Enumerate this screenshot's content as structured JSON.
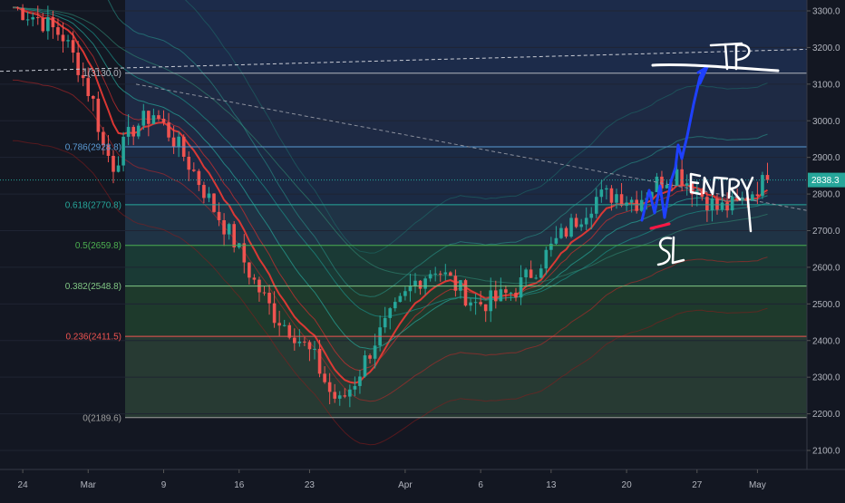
{
  "chart_data": {
    "type": "candlestick",
    "ylim": [
      2000,
      3330
    ],
    "x_ticks": [
      "24",
      "Mar",
      "9",
      "16",
      "23",
      "Apr",
      "6",
      "13",
      "20",
      "27",
      "May"
    ],
    "y_ticks": [
      "3300.0",
      "3200.0",
      "3100.0",
      "3000.0",
      "2900.0",
      "2800.0",
      "2700.0",
      "2600.0",
      "2500.0",
      "2400.0",
      "2300.0",
      "2200.0",
      "2100.0"
    ],
    "current_price": "2838.3",
    "fib_levels": [
      {
        "label": "1(3130.0)",
        "ratio": 1,
        "price": 3130.0,
        "color": "#b2b5be",
        "fill": "#1e2a44"
      },
      {
        "label": "0.786(2928.8)",
        "ratio": 0.786,
        "price": 2928.8,
        "color": "#5b9bd5",
        "fill": "#1b2a44"
      },
      {
        "label": "0.618(2770.8)",
        "ratio": 0.618,
        "price": 2770.8,
        "color": "#26a69a",
        "fill": "#1f3345"
      },
      {
        "label": "0.5(2659.8)",
        "ratio": 0.5,
        "price": 2659.8,
        "color": "#4caf50",
        "fill": "#1a3a35"
      },
      {
        "label": "0.382(2548.8)",
        "ratio": 0.382,
        "price": 2548.8,
        "color": "#81c784",
        "fill": "#1e3a2c"
      },
      {
        "label": "0.236(2411.5)",
        "ratio": 0.236,
        "price": 2411.5,
        "color": "#ef5350",
        "fill": "#273a33"
      },
      {
        "label": "0(2189.6)",
        "ratio": 0,
        "price": 2189.6,
        "color": "#9e9e9e",
        "fill": "#4a1e24"
      }
    ],
    "close_path": [
      [
        0,
        3310
      ],
      [
        5,
        3280
      ],
      [
        10,
        3230
      ],
      [
        13,
        3150
      ],
      [
        16,
        3050
      ],
      [
        18,
        2930
      ],
      [
        20,
        2880
      ],
      [
        24,
        2980
      ],
      [
        28,
        3020
      ],
      [
        32,
        2950
      ],
      [
        36,
        2860
      ],
      [
        40,
        2760
      ],
      [
        44,
        2670
      ],
      [
        48,
        2560
      ],
      [
        52,
        2470
      ],
      [
        56,
        2420
      ],
      [
        60,
        2350
      ],
      [
        63,
        2260
      ],
      [
        65,
        2230
      ],
      [
        68,
        2290
      ],
      [
        72,
        2400
      ],
      [
        76,
        2480
      ],
      [
        80,
        2560
      ],
      [
        84,
        2600
      ],
      [
        88,
        2550
      ],
      [
        92,
        2500
      ],
      [
        96,
        2510
      ],
      [
        100,
        2540
      ],
      [
        104,
        2600
      ],
      [
        108,
        2670
      ],
      [
        112,
        2730
      ],
      [
        116,
        2790
      ],
      [
        120,
        2800
      ],
      [
        124,
        2780
      ],
      [
        128,
        2830
      ],
      [
        132,
        2860
      ],
      [
        136,
        2810
      ],
      [
        140,
        2760
      ],
      [
        144,
        2770
      ],
      [
        148,
        2820
      ],
      [
        150,
        2838.3
      ]
    ],
    "annotations": [
      "TP",
      "ENTRY",
      "SL"
    ]
  }
}
